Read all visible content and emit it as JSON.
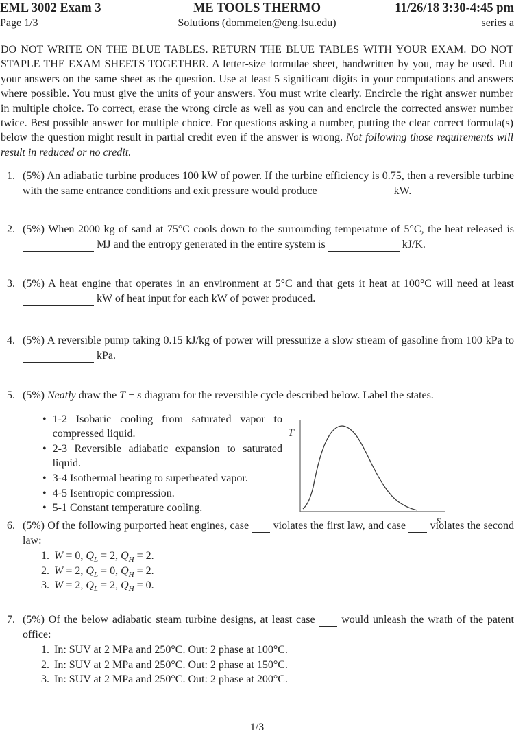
{
  "header": {
    "course": "EML 3002 Exam 3",
    "page": "Page 1/3",
    "title": "ME TOOLS THERMO",
    "solutions": "Solutions (dommelen@eng.fsu.edu)",
    "datetime": "11/26/18 3:30-4:45 pm",
    "series": "series a"
  },
  "instructions": {
    "main": "DO NOT WRITE ON THE BLUE TABLES. RETURN THE BLUE TABLES WITH YOUR EXAM. DO NOT STAPLE THE EXAM SHEETS TOGETHER. A letter-size formulae sheet, handwritten by you, may be used. Put your answers on the same sheet as the question. Use at least 5 significant digits in your computations and answers where possible. You must give the units of your answers. You must write clearly. Encircle the right answer number in multiple choice. To correct, erase the wrong circle as well as you can and encircle the corrected answer number twice. Best possible answer for multiple choice. For questions asking a number, putting the clear correct formula(s) below the question might result in partial credit even if the answer is wrong. ",
    "emphasis": "Not following those requirements will result in reduced or no credit."
  },
  "questions": [
    {
      "number": "1.",
      "segments": [
        {
          "t": "(5%) An adiabatic turbine produces 100 kW of power. If the turbine efficiency is 0.75, then a reversible turbine with the same entrance conditions and exit pressure would produce "
        },
        {
          "s": "blank"
        },
        {
          "t": " kW."
        }
      ]
    },
    {
      "number": "2.",
      "segments": [
        {
          "t": "(5%) When 2000 kg of sand at 75°C cools down to the surrounding temperature of 5°C, the heat released is "
        },
        {
          "s": "blank"
        },
        {
          "t": " MJ and the entropy generated in the entire system is "
        },
        {
          "s": "blank"
        },
        {
          "t": " kJ/K."
        }
      ]
    },
    {
      "number": "3.",
      "segments": [
        {
          "t": "(5%) A heat engine that operates in an environment at 5°C and that gets it heat at 100°C will need at least "
        },
        {
          "s": "blank"
        },
        {
          "t": " kW of heat input for each kW of power produced."
        }
      ]
    },
    {
      "number": "4.",
      "segments": [
        {
          "t": "(5%) A reversible pump taking 0.15 kJ/kg of power will pressurize a slow stream of gasoline from 100 kPa to "
        },
        {
          "s": "blank"
        },
        {
          "t": " kPa."
        }
      ]
    },
    {
      "number": "5.",
      "segments": [
        {
          "t": "(5%) "
        },
        {
          "t": "Neatly",
          "s": "i"
        },
        {
          "t": " draw the "
        },
        {
          "t": "T",
          "s": "i"
        },
        {
          "t": " − "
        },
        {
          "t": "s",
          "s": "i"
        },
        {
          "t": " diagram for the reversible cycle described below. Label the states."
        }
      ],
      "bullet_glyph": "•",
      "bullets": [
        "1-2 Isobaric cooling from saturated vapor to compressed liquid.",
        "2-3 Reversible adiabatic expansion to saturated liquid.",
        "3-4 Isothermal heating to superheated vapor.",
        "4-5 Isentropic compression.",
        "5-1 Constant temperature cooling."
      ],
      "diagram": {
        "y_axis_label": "T",
        "x_axis_label": "s",
        "description": "blank T-s axes with saturation dome curve"
      }
    },
    {
      "number": "6.",
      "segments": [
        {
          "t": "(5%) Of the following purported heat engines, case "
        },
        {
          "s": "blank_s"
        },
        {
          "t": " violates the first law, and case "
        },
        {
          "s": "blank_s"
        },
        {
          "t": " violates the second law:"
        }
      ],
      "item_numbers": [
        "1.",
        "2.",
        "3."
      ],
      "items": [
        [
          {
            "t": "W",
            "s": "i"
          },
          {
            "t": " = 0, "
          },
          {
            "t": "Q",
            "s": "i"
          },
          {
            "t": "L",
            "s": "sub"
          },
          {
            "t": " = 2, "
          },
          {
            "t": "Q",
            "s": "i"
          },
          {
            "t": "H",
            "s": "sub"
          },
          {
            "t": " = 2."
          }
        ],
        [
          {
            "t": "W",
            "s": "i"
          },
          {
            "t": " = 2, "
          },
          {
            "t": "Q",
            "s": "i"
          },
          {
            "t": "L",
            "s": "sub"
          },
          {
            "t": " = 0, "
          },
          {
            "t": "Q",
            "s": "i"
          },
          {
            "t": "H",
            "s": "sub"
          },
          {
            "t": " = 2."
          }
        ],
        [
          {
            "t": "W",
            "s": "i"
          },
          {
            "t": " = 2, "
          },
          {
            "t": "Q",
            "s": "i"
          },
          {
            "t": "L",
            "s": "sub"
          },
          {
            "t": " = 2, "
          },
          {
            "t": "Q",
            "s": "i"
          },
          {
            "t": "H",
            "s": "sub"
          },
          {
            "t": " = 0."
          }
        ]
      ]
    },
    {
      "number": "7.",
      "segments": [
        {
          "t": "(5%) Of the below adiabatic steam turbine designs, at least case "
        },
        {
          "s": "blank_s"
        },
        {
          "t": " would unleash the wrath of the patent office:"
        }
      ],
      "item_numbers": [
        "1.",
        "2.",
        "3."
      ],
      "items": [
        "In: SUV at 2 MPa and 250°C. Out: 2 phase at 100°C.",
        "In: SUV at 2 MPa and 250°C. Out: 2 phase at 150°C.",
        "In: SUV at 2 MPa and 250°C. Out: 2 phase at 200°C."
      ]
    }
  ],
  "footer": {
    "page_indicator": "1/3"
  }
}
